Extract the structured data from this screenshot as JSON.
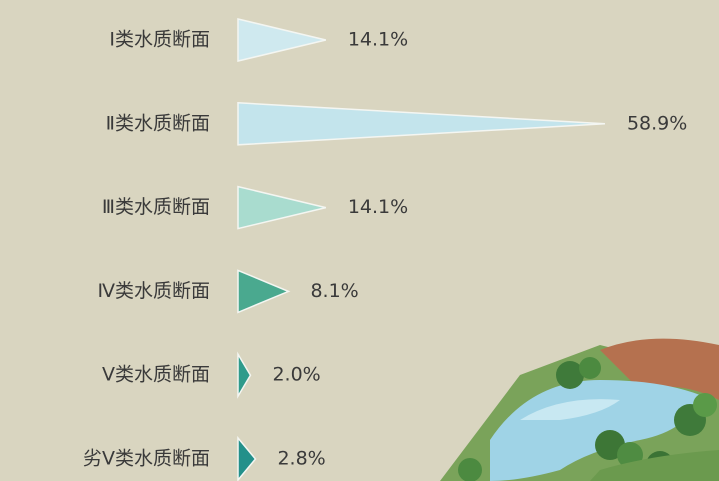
{
  "chart_data": {
    "type": "bar",
    "categories": [
      "Ⅰ类水质断面",
      "Ⅱ类水质断面",
      "Ⅲ类水质断面",
      "Ⅳ类水质断面",
      "Ⅴ类水质断面",
      "劣Ⅴ类水质断面"
    ],
    "values": [
      14.1,
      58.9,
      14.1,
      8.1,
      2.0,
      2.8
    ],
    "value_labels": [
      "14.1%",
      "58.9%",
      "14.1%",
      "8.1%",
      "2.0%",
      "2.8%"
    ],
    "colors": [
      "#cfe9ef",
      "#c3e4ec",
      "#a9dccf",
      "#4aa98f",
      "#2f9b8b",
      "#23908a"
    ]
  }
}
